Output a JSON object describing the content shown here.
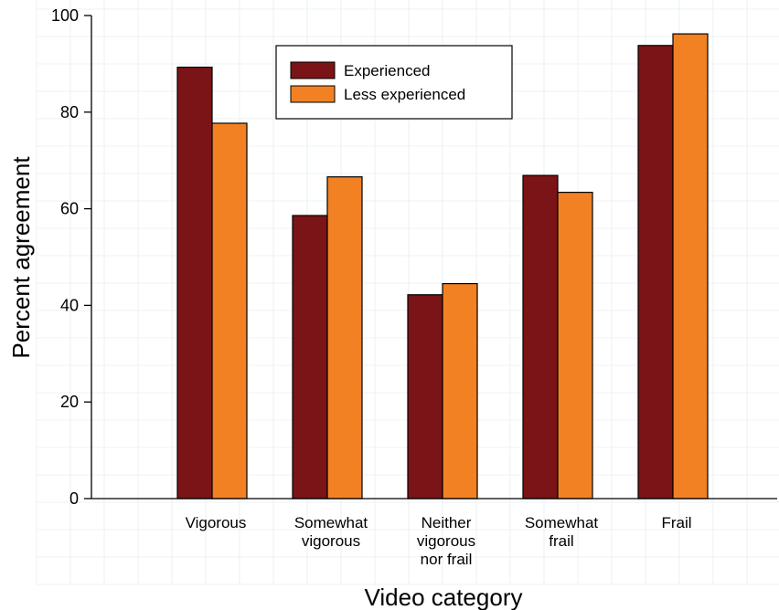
{
  "chart_data": {
    "type": "bar",
    "title": "",
    "xlabel": "Video category",
    "ylabel": "Percent agreement",
    "ylim": [
      0,
      100
    ],
    "yticks": [
      "0",
      "20",
      "40",
      "60",
      "80",
      "100"
    ],
    "categories": [
      [
        "Vigorous"
      ],
      [
        "Somewhat",
        "vigorous"
      ],
      [
        "Neither",
        "vigorous",
        "nor frail"
      ],
      [
        "Somewhat",
        "frail"
      ],
      [
        "Frail"
      ]
    ],
    "series": [
      {
        "name": "Experienced",
        "color": "#7b1416",
        "values": [
          89.3,
          58.6,
          42.2,
          66.9,
          93.8
        ]
      },
      {
        "name": "Less experienced",
        "color": "#f28124",
        "values": [
          77.7,
          66.6,
          44.5,
          63.4,
          96.2
        ]
      }
    ],
    "legend_position": "top-center",
    "grid": "faint background grid"
  }
}
